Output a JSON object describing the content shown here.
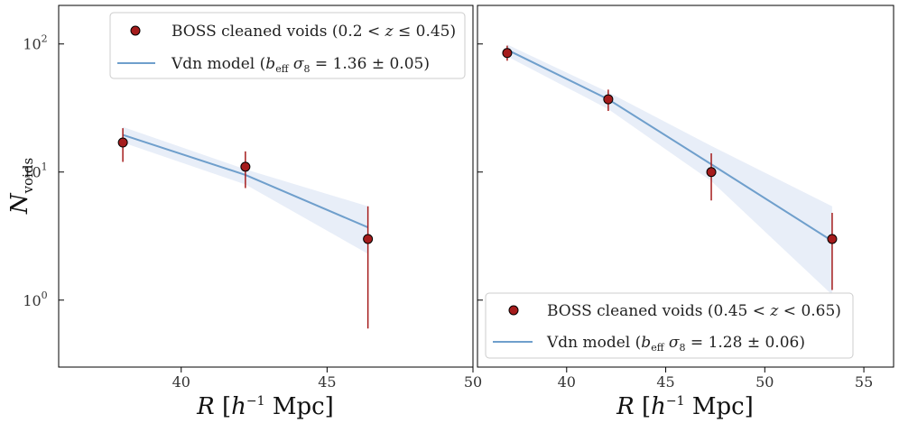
{
  "chart_data": [
    {
      "type": "scatter",
      "panel": "left",
      "xlabel": "R [h⁻¹ Mpc]",
      "ylabel": "N_voids",
      "x_scale": "linear",
      "y_scale": "log",
      "xlim": [
        35.8,
        50
      ],
      "ylim": [
        0.3,
        200
      ],
      "x_ticks": [
        40,
        45,
        50
      ],
      "y_ticks": [
        1,
        10,
        100
      ],
      "y_tick_labels": [
        {
          "base": "10",
          "exp": "0"
        },
        {
          "base": "10",
          "exp": "1"
        },
        {
          "base": "10",
          "exp": "2"
        }
      ],
      "legend_position": "upper-right",
      "series": [
        {
          "name": "BOSS cleaned voids (0.2 < z ≤ 0.45)",
          "kind": "points-with-errorbars",
          "color": "#a51c1c",
          "x": [
            38.0,
            42.2,
            46.4
          ],
          "y": [
            17,
            11,
            3
          ],
          "y_low": [
            12,
            7.5,
            0.6
          ],
          "y_high": [
            22,
            14.5,
            5.4
          ]
        },
        {
          "name": "Vdn model (b_eff σ₈ = 1.36 ± 0.05)",
          "kind": "line-with-band",
          "color": "#6f9fcc",
          "band_color": "#e8eef8",
          "x": [
            38.0,
            42.2,
            46.4
          ],
          "y": [
            19.5,
            9.5,
            3.7
          ],
          "band_low": [
            17.0,
            8.0,
            2.3
          ],
          "band_high": [
            22.5,
            10.5,
            5.4
          ]
        }
      ]
    },
    {
      "type": "scatter",
      "panel": "right",
      "xlabel": "R [h⁻¹ Mpc]",
      "ylabel": "",
      "x_scale": "linear",
      "y_scale": "log",
      "xlim": [
        35.5,
        56.5
      ],
      "ylim": [
        0.3,
        200
      ],
      "x_ticks": [
        40,
        45,
        50,
        55
      ],
      "y_ticks": [
        1,
        10,
        100
      ],
      "legend_position": "lower-right",
      "series": [
        {
          "name": "BOSS cleaned voids (0.45 < z < 0.65)",
          "kind": "points-with-errorbars",
          "color": "#a51c1c",
          "x": [
            37.0,
            42.1,
            47.3,
            53.4
          ],
          "y": [
            85,
            37,
            10,
            3
          ],
          "y_low": [
            74,
            30,
            6,
            1.2
          ],
          "y_high": [
            97,
            44,
            14,
            4.8
          ]
        },
        {
          "name": "Vdn model (b_eff σ₈ = 1.28 ± 0.06)",
          "kind": "line-with-band",
          "color": "#6f9fcc",
          "band_color": "#e8eef8",
          "x": [
            37.0,
            42.1,
            47.3,
            53.4
          ],
          "y": [
            90,
            37,
            11.5,
            2.9
          ],
          "band_low": [
            80,
            31,
            8.5,
            1.1
          ],
          "band_high": [
            99,
            42,
            16,
            5.4
          ]
        }
      ]
    }
  ],
  "legends": {
    "left": {
      "boss": {
        "pre": "BOSS cleaned voids (0.2 < ",
        "z": "z",
        "post": " ≤ 0.45)"
      },
      "vdn": {
        "pre": "Vdn model (",
        "b": "b",
        "sub": "eff",
        "sigma": " σ",
        "sigma_sub": "8",
        "post": " = 1.36 ± 0.05)"
      }
    },
    "right": {
      "boss": {
        "pre": "BOSS cleaned voids (0.45 < ",
        "z": "z",
        "post": " < 0.65)"
      },
      "vdn": {
        "pre": "Vdn model (",
        "b": "b",
        "sub": "eff",
        "sigma": " σ",
        "sigma_sub": "8",
        "post": " = 1.28 ± 0.06)"
      }
    }
  },
  "axis_titles": {
    "y_main": "N",
    "y_sub": "voids",
    "x_R": "R",
    "x_bracket_open": " [",
    "x_h": "h",
    "x_exp": "−1",
    "x_unit": " Mpc]"
  }
}
